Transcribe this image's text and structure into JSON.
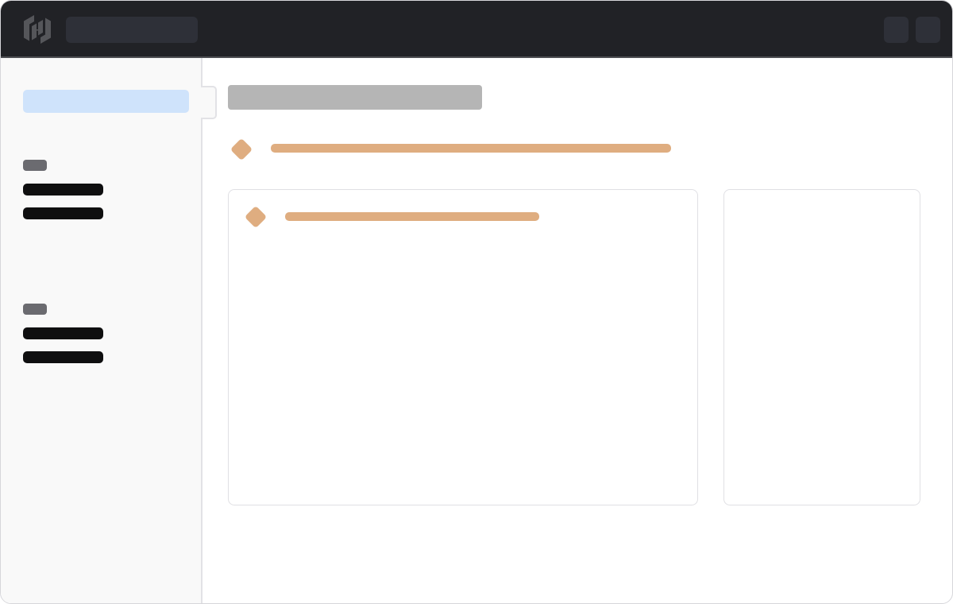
{
  "colors": {
    "topbar": "#212226",
    "sidebar": "#f9f9f9",
    "selected_item": "#cfe3fb",
    "accent": "#dfad80",
    "title_placeholder": "#b5b5b5",
    "nav_item": "#0f0f10",
    "group_label": "#6b6b70"
  },
  "icons": {
    "logo": "hashicorp-logo-icon",
    "heading_marker": "diamond-icon"
  }
}
